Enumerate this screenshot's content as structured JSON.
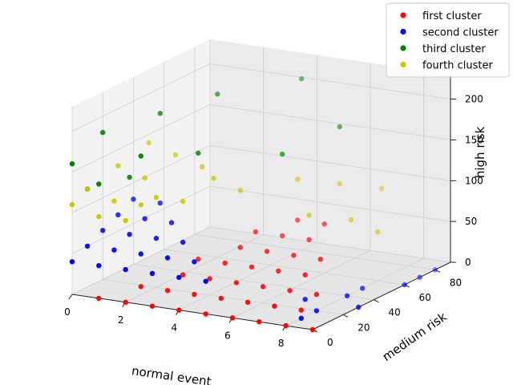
{
  "chart_data": {
    "type": "scatter3d",
    "xlabel": "normal event",
    "ylabel": "medium risk",
    "zlabel": "high risk",
    "xlim": [
      0,
      9
    ],
    "ylim": [
      0,
      90
    ],
    "zlim": [
      0,
      230
    ],
    "xticks": [
      "0",
      "2",
      "4",
      "6",
      "8"
    ],
    "yticks": [
      "0",
      "20",
      "40",
      "60",
      "80"
    ],
    "zticks": [
      "0",
      "50",
      "100",
      "150",
      "200"
    ],
    "grid": true,
    "legend_position": "top-right",
    "series": [
      {
        "name": "first cluster",
        "color": "#ff0000",
        "values": [
          [
            1,
            0,
            0
          ],
          [
            2,
            0,
            0
          ],
          [
            3,
            0,
            0
          ],
          [
            4,
            0,
            0
          ],
          [
            5,
            0,
            0
          ],
          [
            6,
            0,
            0
          ],
          [
            7,
            0,
            0
          ],
          [
            8,
            0,
            0
          ],
          [
            9,
            0,
            0
          ],
          [
            2,
            10,
            10
          ],
          [
            3,
            10,
            10
          ],
          [
            4,
            10,
            10
          ],
          [
            5,
            10,
            10
          ],
          [
            6,
            10,
            10
          ],
          [
            7,
            10,
            10
          ],
          [
            8,
            10,
            10
          ],
          [
            3,
            20,
            20
          ],
          [
            4,
            20,
            20
          ],
          [
            5,
            20,
            20
          ],
          [
            6,
            20,
            20
          ],
          [
            7,
            20,
            20
          ],
          [
            8,
            20,
            20
          ],
          [
            3,
            30,
            30
          ],
          [
            4,
            30,
            30
          ],
          [
            5,
            30,
            30
          ],
          [
            6,
            30,
            30
          ],
          [
            7,
            30,
            30
          ],
          [
            4,
            40,
            40
          ],
          [
            5,
            40,
            40
          ],
          [
            6,
            40,
            40
          ],
          [
            7,
            40,
            40
          ],
          [
            4,
            50,
            50
          ],
          [
            5,
            50,
            50
          ],
          [
            6,
            50,
            50
          ],
          [
            5,
            60,
            60
          ],
          [
            6,
            60,
            60
          ]
        ]
      },
      {
        "name": "second cluster",
        "color": "#0000ff",
        "values": [
          [
            0,
            0,
            40
          ],
          [
            1,
            0,
            40
          ],
          [
            2,
            0,
            40
          ],
          [
            3,
            0,
            40
          ],
          [
            4,
            0,
            40
          ],
          [
            5,
            0,
            40
          ],
          [
            0,
            10,
            50
          ],
          [
            1,
            10,
            50
          ],
          [
            2,
            10,
            50
          ],
          [
            3,
            10,
            50
          ],
          [
            4,
            10,
            50
          ],
          [
            0,
            20,
            60
          ],
          [
            1,
            20,
            60
          ],
          [
            2,
            20,
            60
          ],
          [
            3,
            20,
            60
          ],
          [
            0,
            30,
            70
          ],
          [
            1,
            30,
            70
          ],
          [
            2,
            30,
            70
          ],
          [
            0,
            40,
            80
          ],
          [
            1,
            40,
            80
          ],
          [
            7,
            30,
            0
          ],
          [
            8,
            40,
            0
          ],
          [
            8,
            50,
            0
          ],
          [
            9,
            60,
            0
          ],
          [
            9,
            70,
            0
          ],
          [
            9,
            80,
            0
          ],
          [
            8,
            20,
            0
          ],
          [
            8,
            10,
            0
          ],
          [
            9,
            30,
            0
          ]
        ]
      },
      {
        "name": "third cluster",
        "color": "#008000",
        "values": [
          [
            0,
            0,
            160
          ],
          [
            0,
            20,
            180
          ],
          [
            1,
            0,
            140
          ],
          [
            1,
            40,
            190
          ],
          [
            2,
            10,
            170
          ],
          [
            2,
            60,
            200
          ],
          [
            3,
            30,
            160
          ],
          [
            4,
            80,
            210
          ],
          [
            5,
            50,
            150
          ],
          [
            6,
            70,
            170
          ],
          [
            0,
            10,
            120
          ],
          [
            1,
            20,
            130
          ]
        ]
      },
      {
        "name": "fourth cluster",
        "color": "#c8c800",
        "values": [
          [
            0,
            0,
            110
          ],
          [
            0,
            10,
            120
          ],
          [
            1,
            0,
            100
          ],
          [
            1,
            10,
            110
          ],
          [
            2,
            0,
            100
          ],
          [
            2,
            10,
            110
          ],
          [
            0,
            30,
            130
          ],
          [
            1,
            30,
            120
          ],
          [
            2,
            20,
            110
          ],
          [
            3,
            20,
            110
          ],
          [
            3,
            40,
            120
          ],
          [
            4,
            40,
            110
          ],
          [
            0,
            50,
            140
          ],
          [
            1,
            50,
            130
          ],
          [
            2,
            50,
            120
          ],
          [
            5,
            60,
            110
          ],
          [
            6,
            70,
            100
          ],
          [
            7,
            80,
            90
          ],
          [
            8,
            60,
            60
          ],
          [
            7,
            60,
            70
          ],
          [
            6,
            50,
            80
          ]
        ]
      }
    ]
  }
}
